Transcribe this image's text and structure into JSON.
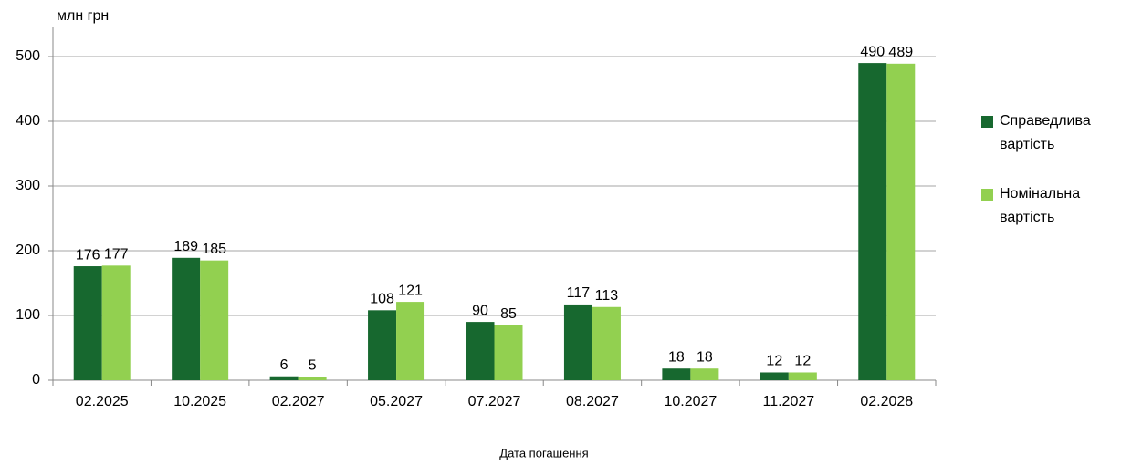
{
  "chart_data": {
    "type": "bar",
    "y_label": "млн грн",
    "x_label": "Дата погашення",
    "categories": [
      "02.2025",
      "10.2025",
      "02.2027",
      "05.2027",
      "07.2027",
      "08.2027",
      "10.2027",
      "11.2027",
      "02.2028"
    ],
    "series": [
      {
        "name": "Справедлива вартість",
        "color": "#17682f",
        "values": [
          176,
          189,
          6,
          108,
          90,
          117,
          18,
          12,
          490
        ]
      },
      {
        "name": "Номінальна вартість",
        "color": "#92d050",
        "values": [
          177,
          185,
          5,
          121,
          85,
          113,
          18,
          12,
          489
        ]
      }
    ],
    "ylim": [
      0,
      545
    ],
    "yticks": [
      0,
      100,
      200,
      300,
      400,
      500
    ],
    "grid": true,
    "legend": "right"
  }
}
